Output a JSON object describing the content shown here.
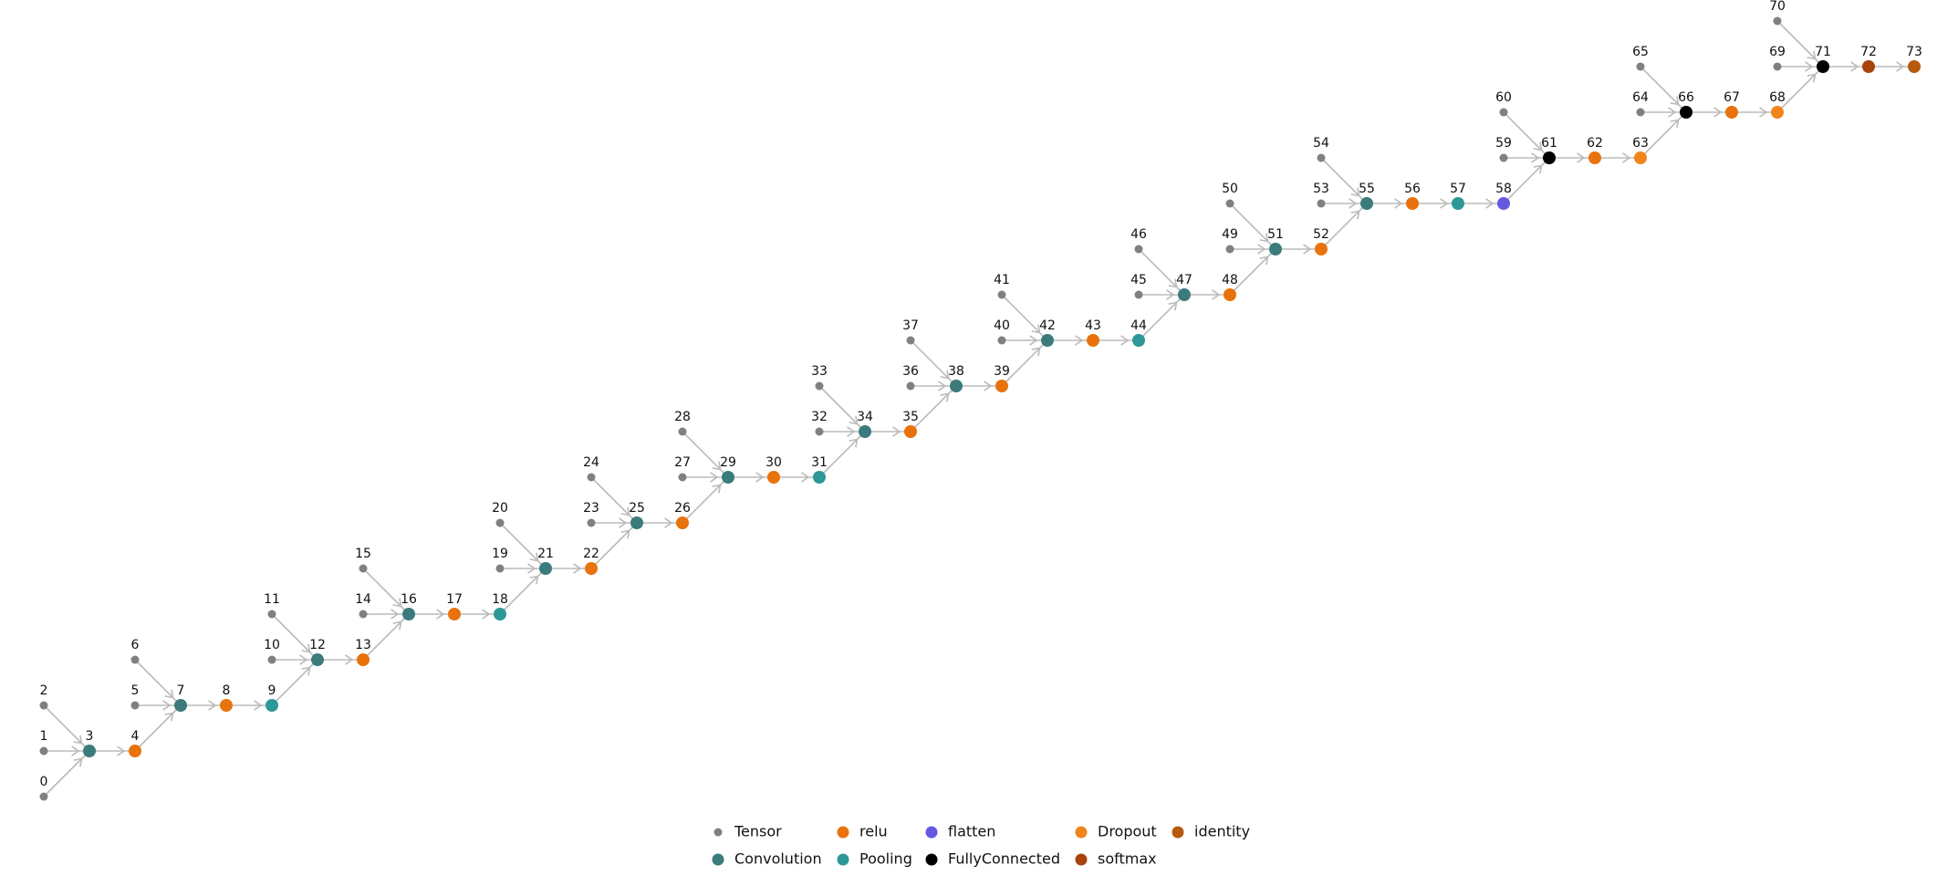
{
  "nodes": [
    {
      "label": "0",
      "type": "Tensor"
    },
    {
      "label": "1",
      "type": "Tensor"
    },
    {
      "label": "2",
      "type": "Tensor"
    },
    {
      "label": "3",
      "type": "Convolution"
    },
    {
      "label": "4",
      "type": "relu"
    },
    {
      "label": "5",
      "type": "Tensor"
    },
    {
      "label": "6",
      "type": "Tensor"
    },
    {
      "label": "7",
      "type": "Convolution"
    },
    {
      "label": "8",
      "type": "relu"
    },
    {
      "label": "9",
      "type": "Pooling"
    },
    {
      "label": "10",
      "type": "Tensor"
    },
    {
      "label": "11",
      "type": "Tensor"
    },
    {
      "label": "12",
      "type": "Convolution"
    },
    {
      "label": "13",
      "type": "relu"
    },
    {
      "label": "14",
      "type": "Tensor"
    },
    {
      "label": "15",
      "type": "Tensor"
    },
    {
      "label": "16",
      "type": "Convolution"
    },
    {
      "label": "17",
      "type": "relu"
    },
    {
      "label": "18",
      "type": "Pooling"
    },
    {
      "label": "19",
      "type": "Tensor"
    },
    {
      "label": "20",
      "type": "Tensor"
    },
    {
      "label": "21",
      "type": "Convolution"
    },
    {
      "label": "22",
      "type": "relu"
    },
    {
      "label": "23",
      "type": "Tensor"
    },
    {
      "label": "24",
      "type": "Tensor"
    },
    {
      "label": "25",
      "type": "Convolution"
    },
    {
      "label": "26",
      "type": "relu"
    },
    {
      "label": "27",
      "type": "Tensor"
    },
    {
      "label": "28",
      "type": "Tensor"
    },
    {
      "label": "29",
      "type": "Convolution"
    },
    {
      "label": "30",
      "type": "relu"
    },
    {
      "label": "31",
      "type": "Pooling"
    },
    {
      "label": "32",
      "type": "Tensor"
    },
    {
      "label": "33",
      "type": "Tensor"
    },
    {
      "label": "34",
      "type": "Convolution"
    },
    {
      "label": "35",
      "type": "relu"
    },
    {
      "label": "36",
      "type": "Tensor"
    },
    {
      "label": "37",
      "type": "Tensor"
    },
    {
      "label": "38",
      "type": "Convolution"
    },
    {
      "label": "39",
      "type": "relu"
    },
    {
      "label": "40",
      "type": "Tensor"
    },
    {
      "label": "41",
      "type": "Tensor"
    },
    {
      "label": "42",
      "type": "Convolution"
    },
    {
      "label": "43",
      "type": "relu"
    },
    {
      "label": "44",
      "type": "Pooling"
    },
    {
      "label": "45",
      "type": "Tensor"
    },
    {
      "label": "46",
      "type": "Tensor"
    },
    {
      "label": "47",
      "type": "Convolution"
    },
    {
      "label": "48",
      "type": "relu"
    },
    {
      "label": "49",
      "type": "Tensor"
    },
    {
      "label": "50",
      "type": "Tensor"
    },
    {
      "label": "51",
      "type": "Convolution"
    },
    {
      "label": "52",
      "type": "relu"
    },
    {
      "label": "53",
      "type": "Tensor"
    },
    {
      "label": "54",
      "type": "Tensor"
    },
    {
      "label": "55",
      "type": "Convolution"
    },
    {
      "label": "56",
      "type": "relu"
    },
    {
      "label": "57",
      "type": "Pooling"
    },
    {
      "label": "58",
      "type": "flatten"
    },
    {
      "label": "59",
      "type": "Tensor"
    },
    {
      "label": "60",
      "type": "Tensor"
    },
    {
      "label": "61",
      "type": "FullyConnected"
    },
    {
      "label": "62",
      "type": "relu"
    },
    {
      "label": "63",
      "type": "Dropout"
    },
    {
      "label": "64",
      "type": "Tensor"
    },
    {
      "label": "65",
      "type": "Tensor"
    },
    {
      "label": "66",
      "type": "FullyConnected"
    },
    {
      "label": "67",
      "type": "relu"
    },
    {
      "label": "68",
      "type": "Dropout"
    },
    {
      "label": "69",
      "type": "Tensor"
    },
    {
      "label": "70",
      "type": "Tensor"
    },
    {
      "label": "71",
      "type": "FullyConnected"
    },
    {
      "label": "72",
      "type": "softmax"
    },
    {
      "label": "73",
      "type": "identity"
    }
  ],
  "edges": [
    [
      0,
      3
    ],
    [
      1,
      3
    ],
    [
      2,
      3
    ],
    [
      3,
      4
    ],
    [
      4,
      7
    ],
    [
      5,
      7
    ],
    [
      6,
      7
    ],
    [
      7,
      8
    ],
    [
      8,
      9
    ],
    [
      9,
      12
    ],
    [
      10,
      12
    ],
    [
      11,
      12
    ],
    [
      12,
      13
    ],
    [
      13,
      16
    ],
    [
      14,
      16
    ],
    [
      15,
      16
    ],
    [
      16,
      17
    ],
    [
      17,
      18
    ],
    [
      18,
      21
    ],
    [
      19,
      21
    ],
    [
      20,
      21
    ],
    [
      21,
      22
    ],
    [
      22,
      25
    ],
    [
      23,
      25
    ],
    [
      24,
      25
    ],
    [
      25,
      26
    ],
    [
      26,
      29
    ],
    [
      27,
      29
    ],
    [
      28,
      29
    ],
    [
      29,
      30
    ],
    [
      30,
      31
    ],
    [
      31,
      34
    ],
    [
      32,
      34
    ],
    [
      33,
      34
    ],
    [
      34,
      35
    ],
    [
      35,
      38
    ],
    [
      36,
      38
    ],
    [
      37,
      38
    ],
    [
      38,
      39
    ],
    [
      39,
      42
    ],
    [
      40,
      42
    ],
    [
      41,
      42
    ],
    [
      42,
      43
    ],
    [
      43,
      44
    ],
    [
      44,
      47
    ],
    [
      45,
      47
    ],
    [
      46,
      47
    ],
    [
      47,
      48
    ],
    [
      48,
      51
    ],
    [
      49,
      51
    ],
    [
      50,
      51
    ],
    [
      51,
      52
    ],
    [
      52,
      55
    ],
    [
      53,
      55
    ],
    [
      54,
      55
    ],
    [
      55,
      56
    ],
    [
      56,
      57
    ],
    [
      57,
      58
    ],
    [
      58,
      61
    ],
    [
      59,
      61
    ],
    [
      60,
      61
    ],
    [
      61,
      62
    ],
    [
      62,
      63
    ],
    [
      63,
      66
    ],
    [
      64,
      66
    ],
    [
      65,
      66
    ],
    [
      66,
      67
    ],
    [
      67,
      68
    ],
    [
      68,
      71
    ],
    [
      69,
      71
    ],
    [
      70,
      71
    ],
    [
      71,
      72
    ],
    [
      72,
      73
    ]
  ],
  "legend": [
    {
      "name": "Tensor",
      "color": "#808080"
    },
    {
      "name": "Convolution",
      "color": "#3b7b7b"
    },
    {
      "name": "relu",
      "color": "#e8730c"
    },
    {
      "name": "Pooling",
      "color": "#2e9898"
    },
    {
      "name": "flatten",
      "color": "#6758e0"
    },
    {
      "name": "FullyConnected",
      "color": "#000000"
    },
    {
      "name": "Dropout",
      "color": "#f2841c"
    },
    {
      "name": "softmax",
      "color": "#a8430c"
    },
    {
      "name": "identity",
      "color": "#b55a0e"
    }
  ]
}
